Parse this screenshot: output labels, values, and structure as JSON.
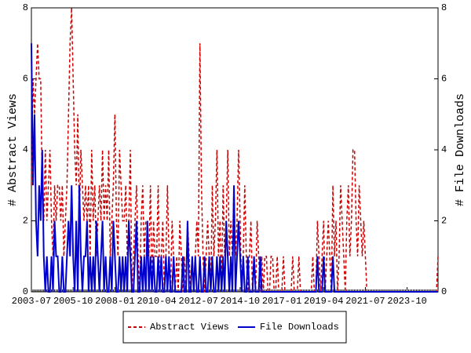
{
  "chart_data": {
    "type": "line",
    "ylabel": "# Abstract Views",
    "y2label": "# File Downloads",
    "ylim": [
      0,
      8
    ],
    "yticks": [
      0,
      2,
      4,
      6,
      8
    ],
    "y2lim": [
      0,
      8
    ],
    "y2ticks": [
      0,
      2,
      4,
      6,
      8
    ],
    "legend": "bottom",
    "categories": [
      "2003-07",
      null,
      null,
      null,
      null,
      null,
      null,
      null,
      null,
      null,
      null,
      null,
      null,
      null,
      null,
      null,
      null,
      null,
      null,
      null,
      null,
      null,
      null,
      null,
      null,
      null,
      null,
      "2005-10",
      null,
      null,
      null,
      null,
      null,
      null,
      null,
      null,
      null,
      null,
      null,
      null,
      null,
      null,
      null,
      null,
      null,
      null,
      null,
      null,
      null,
      null,
      null,
      null,
      null,
      null,
      "2008-01",
      null,
      null,
      null,
      null,
      null,
      null,
      null,
      null,
      null,
      null,
      null,
      null,
      null,
      null,
      null,
      null,
      null,
      null,
      null,
      null,
      null,
      null,
      null,
      null,
      null,
      null,
      "2010-04",
      null,
      null,
      null,
      null,
      null,
      null,
      null,
      null,
      null,
      null,
      null,
      null,
      null,
      null,
      null,
      null,
      null,
      null,
      null,
      null,
      null,
      null,
      null,
      null,
      null,
      null,
      "2012-07",
      null,
      null,
      null,
      null,
      null,
      null,
      null,
      null,
      null,
      null,
      null,
      null,
      null,
      null,
      null,
      null,
      null,
      null,
      null,
      null,
      null,
      null,
      null,
      null,
      null,
      null,
      "2014-10",
      null,
      null,
      null,
      null,
      null,
      null,
      null,
      null,
      null,
      null,
      null,
      null,
      null,
      null,
      null,
      null,
      null,
      null,
      null,
      null,
      null,
      null,
      null,
      null,
      null,
      null,
      "2017-01",
      null,
      null,
      null,
      null,
      null,
      null,
      null,
      null,
      null,
      null,
      null,
      null,
      null,
      null,
      null,
      null,
      null,
      null,
      null,
      null,
      null,
      null,
      null,
      null,
      null,
      null,
      "2019-04",
      null,
      null,
      null,
      null,
      null,
      null,
      null,
      null,
      null,
      null,
      null,
      null,
      null,
      null,
      null,
      null,
      null,
      null,
      null,
      null,
      null,
      null,
      null,
      null,
      null,
      null,
      "2021-07",
      null,
      null,
      null,
      null,
      null,
      null,
      null,
      null,
      null,
      null,
      null,
      null,
      null,
      null,
      null,
      null,
      null,
      null,
      null,
      null,
      null,
      null,
      null,
      null,
      null,
      null,
      "2023-10",
      null,
      null,
      null,
      null,
      null,
      null,
      null,
      null,
      null,
      null,
      null,
      null,
      null,
      null,
      null,
      null,
      null,
      null,
      null,
      null
    ],
    "series": [
      {
        "name": "Abstract Views",
        "color": "#cc0000",
        "line_style": "dashed",
        "values": [
          3,
          6,
          5,
          6,
          7,
          6,
          6,
          3,
          2,
          4,
          2,
          3,
          4,
          2,
          1,
          3,
          2,
          3,
          3,
          2,
          3,
          1,
          2,
          3,
          5,
          7,
          8,
          6,
          4,
          3,
          5,
          2,
          4,
          3,
          2,
          3,
          2,
          3,
          1,
          4,
          2,
          3,
          1,
          2,
          3,
          2,
          4,
          2,
          3,
          2,
          4,
          1,
          2,
          3,
          5,
          2,
          1,
          4,
          3,
          2,
          2,
          3,
          1,
          2,
          4,
          0,
          1,
          2,
          3,
          1,
          0,
          2,
          3,
          1,
          2,
          2,
          1,
          3,
          0,
          2,
          1,
          1,
          3,
          0,
          1,
          2,
          0,
          1,
          3,
          1,
          0,
          2,
          1,
          0,
          1,
          0,
          2,
          1,
          0,
          1,
          0,
          2,
          1,
          0,
          1,
          0,
          1,
          2,
          1,
          7,
          3,
          1,
          0,
          1,
          2,
          1,
          0,
          3,
          1,
          2,
          4,
          1,
          2,
          0,
          3,
          1,
          2,
          4,
          1,
          2,
          1,
          3,
          1,
          2,
          4,
          2,
          0,
          1,
          3,
          1,
          0,
          1,
          2,
          0,
          1,
          0,
          2,
          1,
          0,
          1,
          0,
          1,
          1,
          0,
          0,
          1,
          1,
          0,
          0,
          1,
          0,
          0,
          0,
          1,
          0,
          0,
          0,
          0,
          0,
          1,
          0,
          0,
          0,
          1,
          0,
          0,
          0,
          0,
          0,
          0,
          0,
          0,
          1,
          0,
          0,
          2,
          1,
          0,
          1,
          2,
          0,
          1,
          2,
          1,
          0,
          3,
          1,
          2,
          0,
          1,
          3,
          2,
          1,
          0,
          2,
          3,
          1,
          2,
          4,
          4,
          2,
          1,
          3,
          2,
          1,
          2,
          1,
          0,
          0,
          0,
          0,
          0,
          0,
          0,
          0,
          0,
          0,
          0,
          0,
          0,
          0,
          0,
          0,
          0,
          0,
          0,
          0,
          0,
          0,
          0,
          0,
          0,
          0,
          0,
          0,
          0,
          0,
          0,
          0,
          0,
          0,
          0,
          0,
          0,
          0,
          0,
          0,
          0,
          0,
          0,
          0,
          0,
          0,
          1
        ]
      },
      {
        "name": "File Downloads",
        "color": "#0000cc",
        "line_style": "solid",
        "axis": "y2",
        "values": [
          7,
          3,
          5,
          2,
          1,
          3,
          2,
          4,
          1,
          0,
          1,
          0,
          0,
          1,
          0,
          2,
          1,
          1,
          0,
          0,
          1,
          0,
          0,
          1,
          2,
          1,
          3,
          1,
          0,
          2,
          0,
          3,
          1,
          0,
          1,
          1,
          2,
          0,
          1,
          0,
          1,
          0,
          2,
          1,
          0,
          1,
          2,
          0,
          1,
          0,
          0,
          1,
          0,
          2,
          1,
          0,
          0,
          1,
          0,
          1,
          0,
          1,
          0,
          2,
          1,
          0,
          0,
          1,
          2,
          0,
          0,
          1,
          0,
          1,
          0,
          2,
          0,
          1,
          0,
          1,
          0,
          0,
          1,
          0,
          1,
          0,
          0,
          1,
          0,
          1,
          0,
          0,
          1,
          0,
          0,
          0,
          0,
          0,
          1,
          0,
          0,
          2,
          0,
          0,
          1,
          0,
          1,
          0,
          0,
          1,
          0,
          0,
          1,
          0,
          0,
          1,
          0,
          1,
          0,
          0,
          1,
          0,
          1,
          0,
          1,
          0,
          2,
          1,
          0,
          1,
          0,
          3,
          0,
          1,
          2,
          1,
          0,
          1,
          0,
          0,
          1,
          0,
          0,
          0,
          1,
          0,
          0,
          0,
          1,
          0,
          0,
          0,
          0,
          0,
          0,
          0,
          0,
          0,
          0,
          0,
          0,
          0,
          0,
          0,
          0,
          0,
          0,
          0,
          0,
          0,
          0,
          0,
          0,
          0,
          0,
          0,
          0,
          0,
          0,
          0,
          0,
          0,
          0,
          0,
          0,
          1,
          0,
          0,
          0,
          1,
          0,
          0,
          0,
          0,
          0,
          1,
          0,
          0,
          0,
          0,
          0,
          0,
          0,
          0,
          0,
          0,
          0,
          0,
          0,
          0,
          0,
          0,
          0,
          0,
          0,
          0,
          0,
          0,
          0,
          0,
          0,
          0,
          0,
          0,
          0,
          0,
          0,
          0,
          0,
          0,
          0,
          0,
          0,
          0,
          0,
          0,
          0,
          0,
          0,
          0,
          0,
          0,
          0,
          0,
          0,
          0,
          0,
          0,
          0,
          0,
          0,
          0,
          0,
          0,
          0,
          0,
          0,
          0,
          0,
          0,
          0,
          0,
          0,
          0
        ]
      }
    ]
  }
}
